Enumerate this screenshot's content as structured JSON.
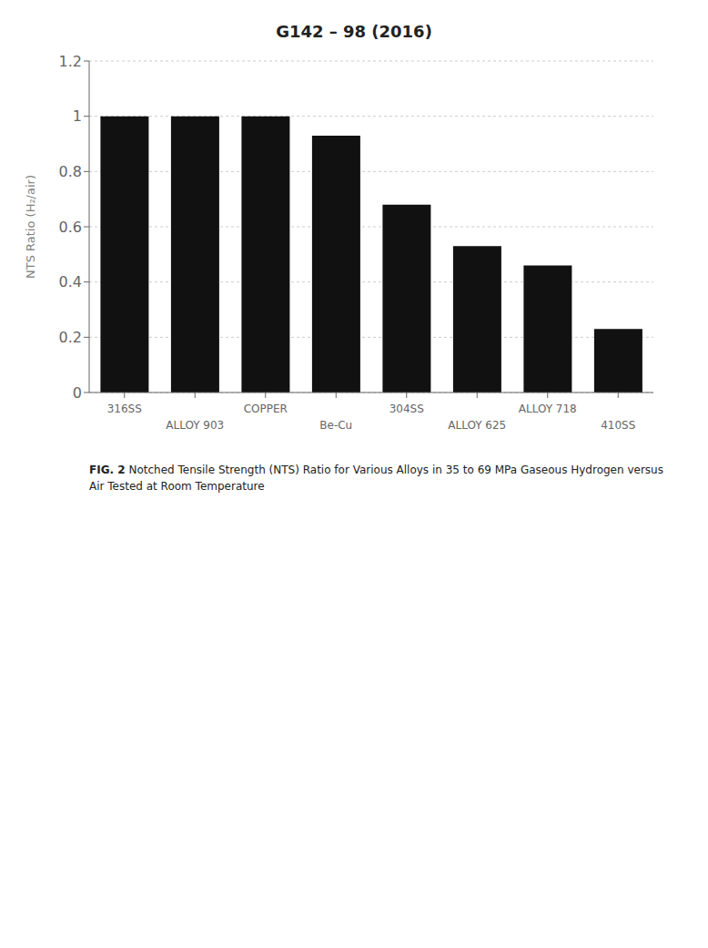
{
  "chart_data": {
    "type": "bar",
    "title": "G142 – 98 (2016)",
    "categories": [
      "316SS",
      "ALLOY 903",
      "COPPER",
      "Be-Cu",
      "304SS",
      "ALLOY 625",
      "ALLOY 718",
      "410SS"
    ],
    "values": [
      1.0,
      1.0,
      1.0,
      0.93,
      0.68,
      0.53,
      0.46,
      0.23
    ],
    "color": "#111111",
    "ylabel": "NTS Ratio (H₂/air)",
    "ylim": [
      0,
      1.2
    ],
    "yticks": [
      0,
      0.2,
      0.4,
      0.6,
      0.8,
      1,
      1.2
    ],
    "grid": true,
    "annotations": [
      "FIG. 2",
      "Notched Tensile Strength (NTS) Ratio for Various Alloys in 35 to 69 MPa Gaseous Hydrogen versus Air Tested at Room Temperature"
    ]
  }
}
